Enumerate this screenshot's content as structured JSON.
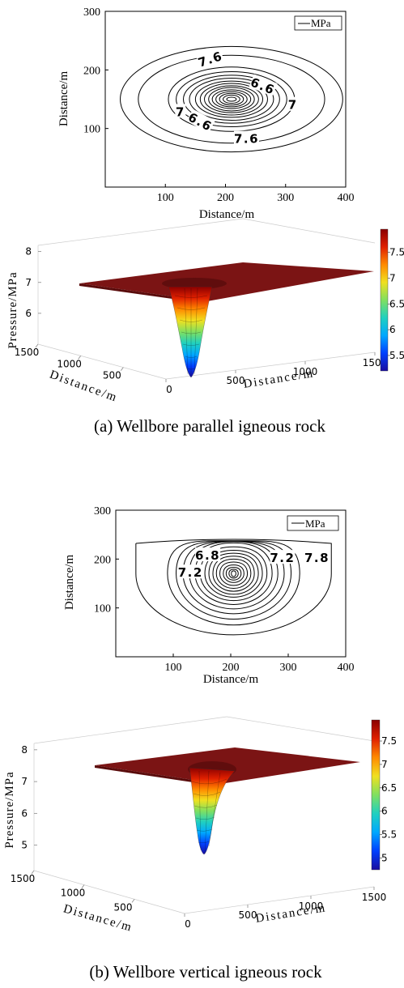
{
  "colors": {
    "surface_top": "#7b1414",
    "surface_edge": "#5a0c0c",
    "colormap": [
      "#1a0da0",
      "#0040ff",
      "#00a8ff",
      "#20d0c0",
      "#80e060",
      "#f0e020",
      "#ff8a00",
      "#e02000",
      "#8a0000"
    ]
  },
  "chart_data": [
    {
      "id": "a-contour",
      "type": "contour",
      "xlabel": "Distance/m",
      "ylabel": "Distance/m",
      "xlim": [
        0,
        400
      ],
      "ylim": [
        0,
        300
      ],
      "xticks": [
        "100",
        "200",
        "300",
        "400"
      ],
      "yticks": [
        "100",
        "200",
        "300"
      ],
      "legend": "MPa",
      "legend_position": "top-right",
      "center": [
        210,
        150
      ],
      "ring_radii": [
        [
          185,
          90
        ],
        [
          155,
          75
        ],
        [
          105,
          55
        ],
        [
          92,
          47
        ],
        [
          80,
          41
        ],
        [
          70,
          36
        ],
        [
          60,
          31
        ],
        [
          52,
          27
        ],
        [
          45,
          23
        ],
        [
          38,
          20
        ],
        [
          32,
          16
        ],
        [
          26,
          13
        ],
        [
          20,
          10
        ],
        [
          14,
          7
        ],
        [
          8,
          3.5
        ]
      ],
      "contour_labels": [
        {
          "text": "7.6",
          "x": 175,
          "y": 218,
          "angle": -18
        },
        {
          "text": "7.6",
          "x": 235,
          "y": 82,
          "angle": 0
        },
        {
          "text": "7",
          "x": 125,
          "y": 128,
          "angle": 0
        },
        {
          "text": "7",
          "x": 312,
          "y": 140,
          "angle": 0
        },
        {
          "text": "6.6",
          "x": 262,
          "y": 172,
          "angle": 22
        },
        {
          "text": "6.6",
          "x": 158,
          "y": 111,
          "angle": 28
        }
      ]
    },
    {
      "id": "a-surface",
      "type": "surface",
      "zlabel": "Pressure/MPa",
      "xlabel": "Distance/m",
      "ylabel": "Distance/m",
      "zticks": [
        "6",
        "7",
        "8"
      ],
      "xticks": [
        "0",
        "500",
        "1000",
        "1500"
      ],
      "yticks": [
        "500",
        "1000",
        "1500"
      ],
      "colorbar_ticks": [
        "5.5",
        "6",
        "6.5",
        "7",
        "7.5"
      ],
      "colorbar_range": [
        5.2,
        7.95
      ],
      "z_range": [
        5.2,
        7.9
      ]
    },
    {
      "id": "b-contour",
      "type": "contour",
      "xlabel": "Distance/m",
      "ylabel": "Distance/m",
      "xlim": [
        0,
        400
      ],
      "ylim": [
        0,
        300
      ],
      "xticks": [
        "100",
        "200",
        "300",
        "400"
      ],
      "yticks": [
        "100",
        "200",
        "300"
      ],
      "legend": "MPa",
      "legend_position": "top-right",
      "center": [
        205,
        170
      ],
      "ring_radii": [
        [
          170,
          125
        ],
        [
          115,
          105
        ],
        [
          100,
          93
        ],
        [
          88,
          82
        ],
        [
          77,
          72
        ],
        [
          67,
          63
        ],
        [
          58,
          55
        ],
        [
          50,
          48
        ],
        [
          43,
          42
        ],
        [
          36,
          36
        ],
        [
          30,
          30
        ],
        [
          24,
          24
        ],
        [
          18,
          18
        ],
        [
          13,
          13
        ],
        [
          8,
          9
        ],
        [
          4,
          6
        ]
      ],
      "contour_labels": [
        {
          "text": "6.8",
          "x": 160,
          "y": 207,
          "angle": 0
        },
        {
          "text": "7.2",
          "x": 130,
          "y": 172,
          "angle": 0
        },
        {
          "text": "7.2",
          "x": 290,
          "y": 202,
          "angle": 0
        },
        {
          "text": "7.8",
          "x": 350,
          "y": 202,
          "angle": 0
        }
      ]
    },
    {
      "id": "b-surface",
      "type": "surface",
      "zlabel": "Pressure/MPa",
      "xlabel": "Distance/m",
      "ylabel": "Distance/m",
      "zticks": [
        "5",
        "6",
        "7",
        "8"
      ],
      "xticks": [
        "0",
        "500",
        "1000",
        "1500"
      ],
      "yticks": [
        "500",
        "1000",
        "1500"
      ],
      "colorbar_ticks": [
        "5",
        "5.5",
        "6",
        "6.5",
        "7",
        "7.5"
      ],
      "colorbar_range": [
        4.75,
        7.95
      ],
      "z_range": [
        4.5,
        7.9
      ]
    }
  ],
  "captions": {
    "a": "(a) Wellbore parallel igneous rock",
    "b": "(b) Wellbore vertical igneous rock"
  }
}
